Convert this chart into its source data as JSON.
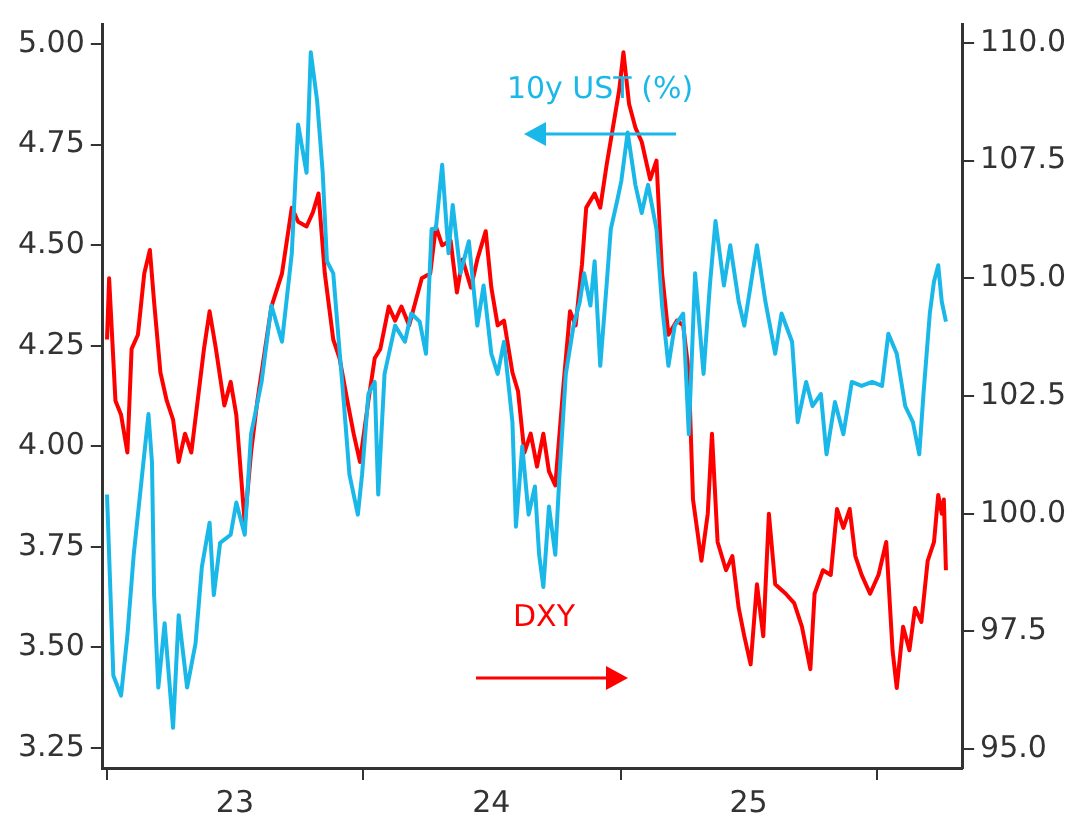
{
  "chart_data": {
    "type": "line",
    "annotations": [
      "10y UST (%)",
      "DXY"
    ],
    "xlim": [
      "2022-12-26",
      "2026-05-02"
    ],
    "xticks": [
      {
        "value": "2023-01-01",
        "label": null
      },
      {
        "value": "2023-07-02",
        "label": "23"
      },
      {
        "value": "2024-01-01",
        "label": null
      },
      {
        "value": "2024-07-01",
        "label": "24"
      },
      {
        "value": "2025-01-01",
        "label": null
      },
      {
        "value": "2025-07-02",
        "label": "25"
      },
      {
        "value": "2026-01-01",
        "label": null
      }
    ],
    "ylim": [
      3.2,
      5.05
    ],
    "yticks": [
      {
        "value": 3.25,
        "label": "3.25"
      },
      {
        "value": 3.5,
        "label": "3.50"
      },
      {
        "value": 3.75,
        "label": "3.75"
      },
      {
        "value": 4,
        "label": "4.00"
      },
      {
        "value": 4.25,
        "label": "4.25"
      },
      {
        "value": 4.5,
        "label": "4.50"
      },
      {
        "value": 4.75,
        "label": "4.75"
      },
      {
        "value": 5,
        "label": "5.00"
      }
    ],
    "y2lim": [
      94.6,
      110.4
    ],
    "y2ticks": [
      {
        "value": 95,
        "label": "95.0"
      },
      {
        "value": 97.5,
        "label": "97.5"
      },
      {
        "value": 100,
        "label": "100.0"
      },
      {
        "value": 102.5,
        "label": "102.5"
      },
      {
        "value": 105,
        "label": "105.0"
      },
      {
        "value": 107.5,
        "label": "107.5"
      },
      {
        "value": 110,
        "label": "110.0"
      }
    ],
    "grid": false,
    "legend": false,
    "marker": "none",
    "line_style": "solid",
    "series": [
      {
        "color": "#1ab8e8",
        "axis": "y",
        "x": [
          "2023-01-01",
          "2023-01-10",
          "2023-01-21",
          "2023-01-30",
          "2023-02-08",
          "2023-02-20",
          "2023-03-01",
          "2023-03-06",
          "2023-03-09",
          "2023-03-15",
          "2023-03-24",
          "2023-04-05",
          "2023-04-13",
          "2023-04-25",
          "2023-05-07",
          "2023-05-16",
          "2023-05-27",
          "2023-06-02",
          "2023-06-11",
          "2023-06-26",
          "2023-07-04",
          "2023-07-16",
          "2023-07-25",
          "2023-08-09",
          "2023-08-23",
          "2023-09-07",
          "2023-09-21",
          "2023-09-30",
          "2023-10-12",
          "2023-10-18",
          "2023-10-27",
          "2023-11-04",
          "2023-11-10",
          "2023-11-19",
          "2023-11-25",
          "2023-12-04",
          "2023-12-12",
          "2023-12-24",
          "2023-12-30",
          "2024-01-08",
          "2024-01-17",
          "2024-01-22",
          "2024-01-31",
          "2024-02-15",
          "2024-02-29",
          "2024-03-09",
          "2024-03-21",
          "2024-03-30",
          "2024-04-07",
          "2024-04-13",
          "2024-04-22",
          "2024-05-01",
          "2024-05-07",
          "2024-05-18",
          "2024-05-30",
          "2024-06-11",
          "2024-06-20",
          "2024-07-01",
          "2024-07-10",
          "2024-07-19",
          "2024-07-31",
          "2024-08-05",
          "2024-08-14",
          "2024-08-23",
          "2024-09-01",
          "2024-09-07",
          "2024-09-13",
          "2024-09-21",
          "2024-09-30",
          "2024-10-06",
          "2024-10-15",
          "2024-10-26",
          "2024-11-04",
          "2024-11-10",
          "2024-11-19",
          "2024-11-25",
          "2024-12-03",
          "2024-12-12",
          "2024-12-18",
          "2024-12-27",
          "2025-01-02",
          "2025-01-11",
          "2025-01-22",
          "2025-01-31",
          "2025-02-09",
          "2025-02-21",
          "2025-03-01",
          "2025-03-10",
          "2025-03-19",
          "2025-03-31",
          "2025-04-08",
          "2025-04-17",
          "2025-04-29",
          "2025-05-08",
          "2025-05-16",
          "2025-05-28",
          "2025-06-06",
          "2025-06-18",
          "2025-06-26",
          "2025-07-05",
          "2025-07-14",
          "2025-07-26",
          "2025-08-09",
          "2025-08-18",
          "2025-09-02",
          "2025-09-10",
          "2025-09-22",
          "2025-10-01",
          "2025-10-13",
          "2025-10-21",
          "2025-11-02",
          "2025-11-14",
          "2025-11-26",
          "2025-12-10",
          "2025-12-25",
          "2026-01-08",
          "2026-01-17",
          "2026-01-29",
          "2026-02-10",
          "2026-02-21",
          "2026-03-02",
          "2026-03-08",
          "2026-03-17",
          "2026-03-23",
          "2026-03-29",
          "2026-04-03",
          "2026-04-09"
        ],
        "values": [
          3.88,
          3.43,
          3.38,
          3.53,
          3.73,
          3.93,
          4.08,
          3.96,
          3.63,
          3.4,
          3.56,
          3.3,
          3.58,
          3.4,
          3.51,
          3.7,
          3.81,
          3.63,
          3.76,
          3.78,
          3.86,
          3.78,
          4.03,
          4.16,
          4.35,
          4.26,
          4.48,
          4.8,
          4.68,
          4.98,
          4.86,
          4.68,
          4.46,
          4.43,
          4.3,
          4.11,
          3.93,
          3.83,
          3.93,
          4.13,
          4.16,
          3.88,
          4.18,
          4.3,
          4.26,
          4.33,
          4.31,
          4.23,
          4.54,
          4.54,
          4.7,
          4.48,
          4.6,
          4.43,
          4.51,
          4.3,
          4.4,
          4.23,
          4.18,
          4.26,
          4.06,
          3.8,
          4.0,
          3.83,
          3.9,
          3.73,
          3.65,
          3.85,
          3.73,
          3.93,
          4.18,
          4.3,
          4.36,
          4.43,
          4.35,
          4.46,
          4.2,
          4.4,
          4.54,
          4.61,
          4.66,
          4.78,
          4.65,
          4.58,
          4.65,
          4.54,
          4.35,
          4.2,
          4.3,
          4.33,
          4.03,
          4.43,
          4.18,
          4.4,
          4.56,
          4.4,
          4.5,
          4.36,
          4.3,
          4.4,
          4.5,
          4.36,
          4.23,
          4.33,
          4.26,
          4.06,
          4.16,
          4.1,
          4.13,
          3.98,
          4.11,
          4.03,
          4.16,
          4.15,
          4.16,
          4.15,
          4.28,
          4.23,
          4.1,
          4.06,
          3.98,
          4.13,
          4.33,
          4.41,
          4.45,
          4.36,
          4.31
        ]
      },
      {
        "color": "#ff0000",
        "axis": "y2",
        "x": [
          "2023-01-01",
          "2023-01-04",
          "2023-01-13",
          "2023-01-21",
          "2023-01-30",
          "2023-02-05",
          "2023-02-14",
          "2023-02-23",
          "2023-03-03",
          "2023-03-09",
          "2023-03-18",
          "2023-03-27",
          "2023-04-05",
          "2023-04-13",
          "2023-04-22",
          "2023-05-01",
          "2023-05-10",
          "2023-05-19",
          "2023-05-27",
          "2023-06-05",
          "2023-06-17",
          "2023-06-26",
          "2023-07-04",
          "2023-07-16",
          "2023-07-25",
          "2023-08-03",
          "2023-08-14",
          "2023-08-23",
          "2023-09-07",
          "2023-09-21",
          "2023-09-30",
          "2023-10-12",
          "2023-10-21",
          "2023-10-29",
          "2023-11-07",
          "2023-11-19",
          "2023-11-28",
          "2023-12-09",
          "2023-12-18",
          "2023-12-27",
          "2024-01-08",
          "2024-01-17",
          "2024-01-25",
          "2024-02-06",
          "2024-02-15",
          "2024-02-24",
          "2024-03-06",
          "2024-03-15",
          "2024-03-24",
          "2024-04-05",
          "2024-04-13",
          "2024-04-22",
          "2024-05-04",
          "2024-05-13",
          "2024-05-21",
          "2024-06-02",
          "2024-06-11",
          "2024-06-23",
          "2024-07-01",
          "2024-07-10",
          "2024-07-19",
          "2024-07-31",
          "2024-08-08",
          "2024-08-17",
          "2024-08-26",
          "2024-09-04",
          "2024-09-13",
          "2024-09-21",
          "2024-09-30",
          "2024-10-12",
          "2024-10-21",
          "2024-10-29",
          "2024-11-07",
          "2024-11-13",
          "2024-11-25",
          "2024-12-03",
          "2024-12-12",
          "2024-12-21",
          "2024-12-30",
          "2025-01-05",
          "2025-01-13",
          "2025-01-22",
          "2025-01-31",
          "2025-02-12",
          "2025-02-21",
          "2025-03-01",
          "2025-03-10",
          "2025-03-22",
          "2025-03-31",
          "2025-04-08",
          "2025-04-14",
          "2025-04-26",
          "2025-05-05",
          "2025-05-11",
          "2025-05-19",
          "2025-05-31",
          "2025-06-09",
          "2025-06-18",
          "2025-06-26",
          "2025-07-05",
          "2025-07-14",
          "2025-07-23",
          "2025-07-31",
          "2025-08-09",
          "2025-08-24",
          "2025-09-05",
          "2025-09-16",
          "2025-09-28",
          "2025-10-04",
          "2025-10-16",
          "2025-10-27",
          "2025-11-05",
          "2025-11-14",
          "2025-11-23",
          "2025-12-01",
          "2025-12-10",
          "2025-12-22",
          "2026-01-03",
          "2026-01-14",
          "2026-01-23",
          "2026-01-29",
          "2026-02-07",
          "2026-02-16",
          "2026-02-24",
          "2026-03-05",
          "2026-03-14",
          "2026-03-23",
          "2026-03-29",
          "2026-04-03",
          "2026-04-06",
          "2026-04-09"
        ],
        "values": [
          103.7,
          105.0,
          102.4,
          102.1,
          101.3,
          103.5,
          103.8,
          105.1,
          105.6,
          104.5,
          103.0,
          102.4,
          102.0,
          101.1,
          101.7,
          101.3,
          102.4,
          103.5,
          104.3,
          103.5,
          102.3,
          102.8,
          102.1,
          99.8,
          101.3,
          102.4,
          103.5,
          104.4,
          105.1,
          106.5,
          106.2,
          106.1,
          106.4,
          106.8,
          105.1,
          103.7,
          103.3,
          102.4,
          101.7,
          101.1,
          102.4,
          103.3,
          103.5,
          104.4,
          104.1,
          104.4,
          104.0,
          104.5,
          105.0,
          105.1,
          106.1,
          105.7,
          105.8,
          104.7,
          105.4,
          104.8,
          105.4,
          106.0,
          104.8,
          104.0,
          104.1,
          103.0,
          102.6,
          101.3,
          101.7,
          101.0,
          101.7,
          100.9,
          100.6,
          102.8,
          104.3,
          104.0,
          105.3,
          106.5,
          106.8,
          106.5,
          107.4,
          108.2,
          109.0,
          109.8,
          108.7,
          108.2,
          107.9,
          107.1,
          107.5,
          105.1,
          103.8,
          104.1,
          104.0,
          103.0,
          100.3,
          99.0,
          100.0,
          101.7,
          99.4,
          98.8,
          99.1,
          98.0,
          97.4,
          96.8,
          98.5,
          97.4,
          100.0,
          98.5,
          98.3,
          98.1,
          97.6,
          96.7,
          98.3,
          98.8,
          98.7,
          100.1,
          99.7,
          100.1,
          99.1,
          98.7,
          98.3,
          98.7,
          99.4,
          97.1,
          96.3,
          97.6,
          97.1,
          98.0,
          97.7,
          99.0,
          99.4,
          100.4,
          100.0,
          100.3,
          98.8
        ]
      }
    ]
  }
}
